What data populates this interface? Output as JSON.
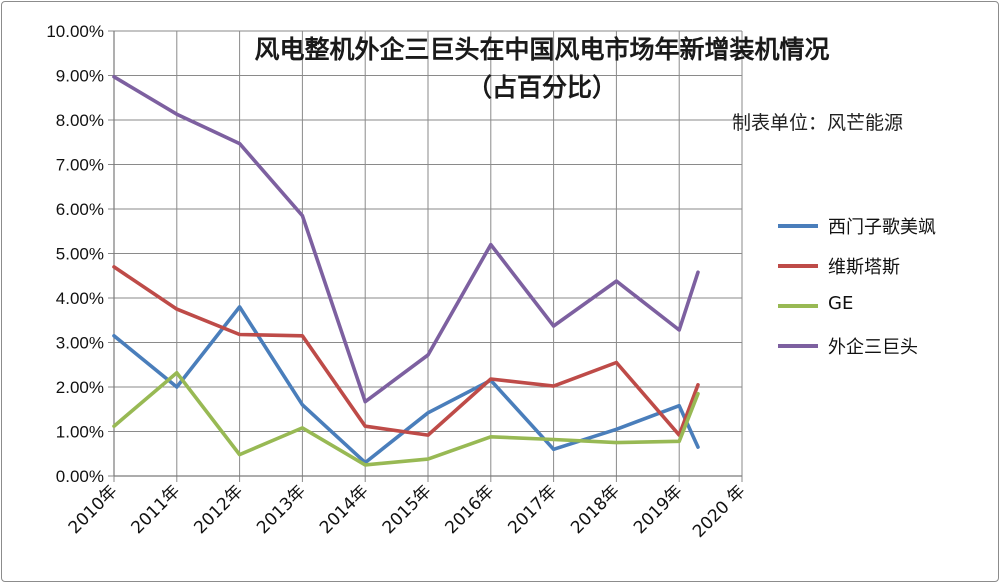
{
  "chart_data": {
    "type": "line",
    "title": "风电整机外企三巨头在中国风电市场年新增装机情况",
    "subtitle": "（占百分比）",
    "note": "制表单位：风芒能源",
    "categories": [
      "2010年",
      "2011年",
      "2012年",
      "2013年",
      "2014年",
      "2015年",
      "2016年",
      "2017年",
      "2018年",
      "2019年",
      "2020 年"
    ],
    "ylim": [
      0,
      10
    ],
    "yticks": [
      "0.00%",
      "1.00%",
      "2.00%",
      "3.00%",
      "4.00%",
      "5.00%",
      "6.00%",
      "7.00%",
      "8.00%",
      "9.00%",
      "10.00%"
    ],
    "grid": true,
    "legend_position": "right",
    "series": [
      {
        "name": "西门子歌美飒",
        "color": "#4a7ebb",
        "x": [
          0,
          1,
          2,
          3,
          4,
          5,
          6,
          7,
          8,
          9,
          9.3
        ],
        "values": [
          3.15,
          2.0,
          3.8,
          1.6,
          0.3,
          1.42,
          2.15,
          0.6,
          1.05,
          1.58,
          0.65
        ]
      },
      {
        "name": "维斯塔斯",
        "color": "#be4b48",
        "x": [
          0,
          1,
          2,
          3,
          4,
          5,
          6,
          7,
          8,
          9,
          9.3
        ],
        "values": [
          4.7,
          3.75,
          3.18,
          3.15,
          1.12,
          0.92,
          2.18,
          2.02,
          2.55,
          0.92,
          2.05
        ]
      },
      {
        "name": "GE",
        "color": "#98b954",
        "x": [
          0,
          1,
          2,
          3,
          4,
          5,
          6,
          7,
          8,
          9,
          9.3
        ],
        "values": [
          1.12,
          2.32,
          0.48,
          1.08,
          0.25,
          0.38,
          0.88,
          0.82,
          0.75,
          0.78,
          1.85
        ]
      },
      {
        "name": "外企三巨头",
        "color": "#7d60a0",
        "x": [
          0,
          1,
          2,
          3,
          4,
          5,
          6,
          7,
          8,
          9,
          9.3
        ],
        "values": [
          8.97,
          8.13,
          7.47,
          5.85,
          1.67,
          2.72,
          5.2,
          3.37,
          4.38,
          3.28,
          4.58
        ]
      }
    ]
  }
}
